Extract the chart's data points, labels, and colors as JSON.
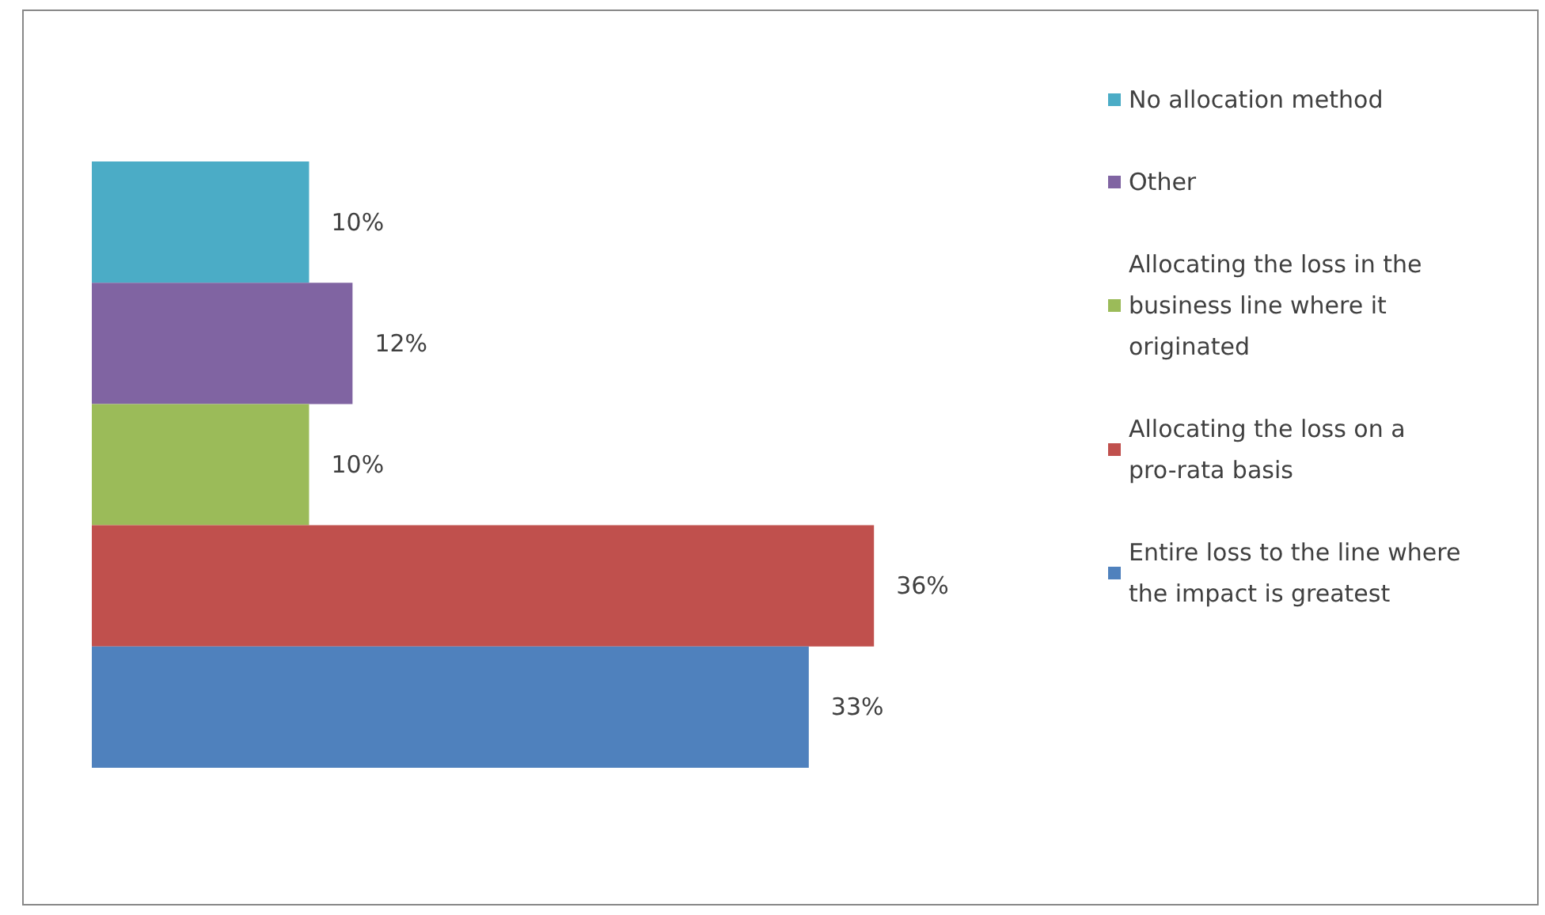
{
  "chart_data": {
    "type": "bar",
    "orientation": "horizontal",
    "categories": [
      null
    ],
    "legend": "right",
    "series": [
      {
        "name": "No allocation method",
        "color": "#4bacc6",
        "values": [
          10
        ],
        "value_labels": [
          "10%"
        ]
      },
      {
        "name": "Other",
        "color": "#8064a2",
        "values": [
          12
        ],
        "value_labels": [
          "12%"
        ]
      },
      {
        "name": "Allocating the loss in the business line where it originated",
        "color": "#9bbb59",
        "values": [
          10
        ],
        "value_labels": [
          "10%"
        ]
      },
      {
        "name": "Allocating the loss on a pro-rata basis",
        "color": "#c0504d",
        "values": [
          36
        ],
        "value_labels": [
          "36%"
        ]
      },
      {
        "name": "Entire loss to the line where the impact is greatest",
        "color": "#4f81bd",
        "values": [
          33
        ],
        "value_labels": [
          "33%"
        ]
      }
    ]
  }
}
